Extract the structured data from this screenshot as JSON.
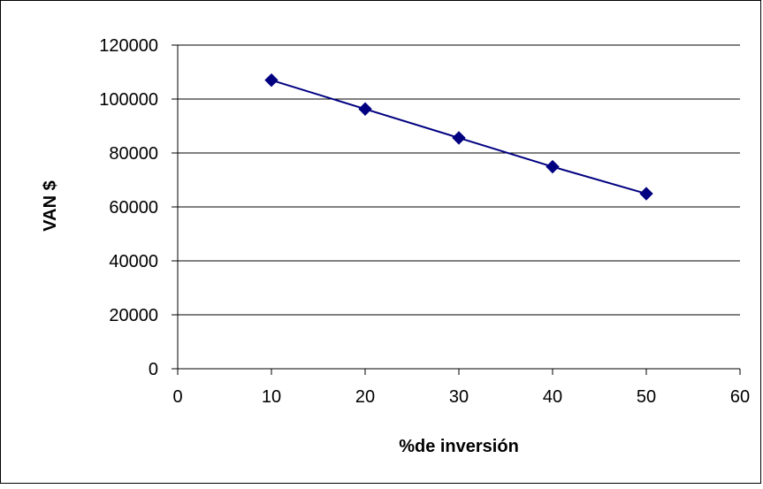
{
  "chart_data": {
    "type": "scatter",
    "title": "",
    "xlabel": "%de inversión",
    "ylabel": "VAN $",
    "xlim": [
      0,
      60
    ],
    "ylim": [
      0,
      120000
    ],
    "xticks": [
      0,
      10,
      20,
      30,
      40,
      50,
      60
    ],
    "yticks": [
      0,
      20000,
      40000,
      60000,
      80000,
      100000,
      120000
    ],
    "grid": "horizontal",
    "legend": "none",
    "series": [
      {
        "x": [
          10,
          20,
          30,
          40,
          50
        ],
        "values": [
          107000,
          96300,
          85600,
          74900,
          64900
        ],
        "color": "#000080",
        "marker": "diamond",
        "line": "straight"
      }
    ]
  }
}
